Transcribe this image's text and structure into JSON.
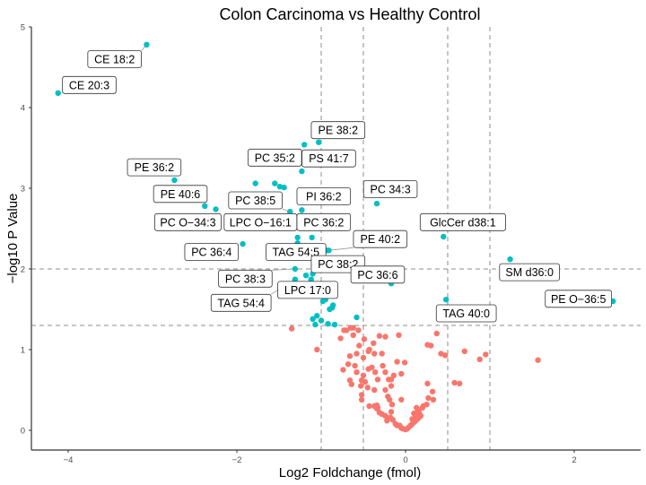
{
  "chart_data": {
    "type": "scatter",
    "title": "Colon Carcinoma vs Healthy Control",
    "xlabel": "Log2 Foldchange (fmol)",
    "ylabel": "−log10 P Value",
    "xlim": [
      -4.4,
      2.8
    ],
    "ylim": [
      -0.25,
      5.05
    ],
    "x_ticks": [
      -4,
      -2,
      0,
      2
    ],
    "y_ticks": [
      0,
      1,
      2,
      3,
      4,
      5
    ],
    "x_tick_labels": [
      "−4",
      "−2",
      "0",
      "2"
    ],
    "y_tick_labels": [
      "0",
      "1",
      "2",
      "3",
      "4",
      "5"
    ],
    "grid": false,
    "vlines": [
      -1,
      -0.5,
      0.5,
      1
    ],
    "hlines": [
      2,
      1.3
    ],
    "colors": {
      "significant": "#00BFC4",
      "not_significant": "#F8766D"
    },
    "labeled_points": [
      {
        "label": "CE 18:2",
        "x": -3.07,
        "y": 4.78,
        "lx": -3.45,
        "ly": 4.6
      },
      {
        "label": "CE 20:3",
        "x": -4.12,
        "y": 4.18,
        "lx": -3.75,
        "ly": 4.28
      },
      {
        "label": "PE 38:2",
        "x": -1.03,
        "y": 3.57,
        "lx": -0.8,
        "ly": 3.72
      },
      {
        "label": "PC 35:2",
        "x": -1.2,
        "y": 3.54,
        "lx": -1.55,
        "ly": 3.38
      },
      {
        "label": "PS 41:7",
        "x": -1.23,
        "y": 3.21,
        "lx": -0.91,
        "ly": 3.37
      },
      {
        "label": "PE 36:2",
        "x": -2.74,
        "y": 3.1,
        "lx": -2.98,
        "ly": 3.26
      },
      {
        "label": "PE 40:6",
        "x": -2.38,
        "y": 2.78,
        "lx": -2.67,
        "ly": 2.93
      },
      {
        "label": "PC 38:5",
        "x": -1.37,
        "y": 2.71,
        "lx": -1.78,
        "ly": 2.85
      },
      {
        "label": "PI 36:2",
        "x": -1.23,
        "y": 2.73,
        "lx": -0.97,
        "ly": 2.9
      },
      {
        "label": "PC 34:3",
        "x": -0.34,
        "y": 2.81,
        "lx": -0.18,
        "ly": 2.99
      },
      {
        "label": "PC O−34:3",
        "x": -2.25,
        "y": 2.74,
        "lx": -2.58,
        "ly": 2.58
      },
      {
        "label": "LPC O−16:1",
        "x": -1.28,
        "y": 2.39,
        "lx": -1.72,
        "ly": 2.58
      },
      {
        "label": "PC 36:2",
        "x": -1.11,
        "y": 2.39,
        "lx": -0.97,
        "ly": 2.58
      },
      {
        "label": "GlcCer d38:1",
        "x": 0.45,
        "y": 2.4,
        "lx": 0.68,
        "ly": 2.58
      },
      {
        "label": "PC 36:4",
        "x": -1.93,
        "y": 2.31,
        "lx": -2.3,
        "ly": 2.21
      },
      {
        "label": "TAG 54:5",
        "x": -1.28,
        "y": 2.32,
        "lx": -1.3,
        "ly": 2.21
      },
      {
        "label": "PE 40:2",
        "x": -0.91,
        "y": 2.23,
        "lx": -0.3,
        "ly": 2.37
      },
      {
        "label": "PC 38:2",
        "x": -0.94,
        "y": 2.23,
        "lx": -0.8,
        "ly": 2.06
      },
      {
        "label": "PC 36:6",
        "x": -0.17,
        "y": 1.82,
        "lx": -0.33,
        "ly": 1.93
      },
      {
        "label": "SM d36:0",
        "x": 1.24,
        "y": 2.12,
        "lx": 1.47,
        "ly": 1.96
      },
      {
        "label": "PC 38:3",
        "x": -1.31,
        "y": 2.0,
        "lx": -1.9,
        "ly": 1.88
      },
      {
        "label": "LPC 17:0",
        "x": -1.12,
        "y": 1.87,
        "lx": -1.16,
        "ly": 1.74
      },
      {
        "label": "TAG 54:4",
        "x": -1.31,
        "y": 1.87,
        "lx": -1.95,
        "ly": 1.58
      },
      {
        "label": "PE O−36:5",
        "x": 2.46,
        "y": 1.6,
        "lx": 2.05,
        "ly": 1.63
      },
      {
        "label": "TAG 40:0",
        "x": 0.48,
        "y": 1.62,
        "lx": 0.72,
        "ly": 1.45
      }
    ],
    "significant_points": [
      [
        -1.78,
        3.06
      ],
      [
        -1.55,
        3.06
      ],
      [
        -1.49,
        3.02
      ],
      [
        -1.44,
        3.01
      ],
      [
        -1.23,
        2.96
      ],
      [
        -1.18,
        1.92
      ],
      [
        -1.1,
        1.94
      ],
      [
        -0.98,
        1.6
      ],
      [
        -0.95,
        1.62
      ],
      [
        -0.9,
        1.5
      ],
      [
        -0.87,
        1.52
      ],
      [
        -0.86,
        1.55
      ],
      [
        -1.1,
        1.38
      ],
      [
        -1.05,
        1.42
      ],
      [
        -1.07,
        1.31
      ],
      [
        -1.0,
        1.36
      ],
      [
        -0.92,
        1.32
      ],
      [
        -0.84,
        1.31
      ],
      [
        -0.58,
        1.4
      ]
    ],
    "nonsignificant_points": [
      [
        -1.35,
        1.26
      ],
      [
        -1.05,
        1.0
      ],
      [
        -0.73,
        1.24
      ],
      [
        -0.7,
        1.24
      ],
      [
        -0.62,
        1.18
      ],
      [
        -0.55,
        1.05
      ],
      [
        -0.56,
        1.24
      ],
      [
        -0.49,
        1.13
      ],
      [
        -0.31,
        1.17
      ],
      [
        -0.24,
        1.16
      ],
      [
        -0.08,
        1.18
      ],
      [
        -0.38,
        1.08
      ],
      [
        -0.43,
        1.0
      ],
      [
        -0.5,
        0.9
      ],
      [
        -0.37,
        0.95
      ],
      [
        -0.74,
        0.75
      ],
      [
        -0.66,
        0.92
      ],
      [
        -0.68,
        0.82
      ],
      [
        -0.6,
        0.8
      ],
      [
        -0.58,
        0.72
      ],
      [
        -0.5,
        0.68
      ],
      [
        -0.44,
        0.98
      ],
      [
        -0.44,
        0.76
      ],
      [
        -0.36,
        0.72
      ],
      [
        -0.27,
        0.8
      ],
      [
        -0.24,
        0.72
      ],
      [
        -0.52,
        0.62
      ],
      [
        -0.53,
        0.55
      ],
      [
        -0.48,
        0.6
      ],
      [
        -0.52,
        0.44
      ],
      [
        -0.45,
        0.53
      ],
      [
        -0.37,
        0.5
      ],
      [
        -0.33,
        0.63
      ],
      [
        -0.17,
        0.63
      ],
      [
        -0.2,
        0.63
      ],
      [
        -0.17,
        0.55
      ],
      [
        -0.24,
        0.5
      ],
      [
        -0.43,
        0.3
      ],
      [
        -0.52,
        0.38
      ],
      [
        -0.37,
        0.3
      ],
      [
        -0.33,
        0.28
      ],
      [
        -0.21,
        0.42
      ],
      [
        -0.19,
        0.38
      ],
      [
        -0.16,
        0.32
      ],
      [
        -0.05,
        0.38
      ],
      [
        -0.17,
        0.23
      ],
      [
        -0.18,
        0.16
      ],
      [
        -0.24,
        0.18
      ],
      [
        -0.28,
        0.2
      ],
      [
        -0.31,
        0.22
      ],
      [
        -0.34,
        0.31
      ],
      [
        -0.34,
        0.27
      ],
      [
        -0.22,
        0.12
      ],
      [
        -0.15,
        0.13
      ],
      [
        -0.12,
        0.08
      ],
      [
        -0.1,
        0.06
      ],
      [
        -0.07,
        0.06
      ],
      [
        -0.05,
        0.03
      ],
      [
        -0.03,
        0.02
      ],
      [
        0.0,
        0.01
      ],
      [
        0.02,
        0.02
      ],
      [
        0.04,
        0.04
      ],
      [
        0.06,
        0.06
      ],
      [
        0.08,
        0.08
      ],
      [
        0.1,
        0.1
      ],
      [
        0.12,
        0.12
      ],
      [
        0.14,
        0.14
      ],
      [
        0.16,
        0.16
      ],
      [
        0.18,
        0.18
      ],
      [
        0.08,
        0.14
      ],
      [
        0.12,
        0.18
      ],
      [
        0.16,
        0.22
      ],
      [
        0.21,
        0.3
      ],
      [
        0.25,
        0.32
      ],
      [
        0.27,
        0.4
      ],
      [
        0.33,
        0.38
      ],
      [
        0.32,
        0.48
      ],
      [
        0.26,
        0.58
      ],
      [
        0.15,
        0.24
      ],
      [
        0.1,
        0.21
      ],
      [
        0.13,
        0.28
      ],
      [
        0.2,
        0.28
      ],
      [
        0.26,
        1.06
      ],
      [
        0.3,
        1.05
      ],
      [
        0.37,
        1.2
      ],
      [
        0.42,
        0.95
      ],
      [
        0.47,
        0.93
      ],
      [
        0.58,
        0.59
      ],
      [
        0.64,
        0.58
      ],
      [
        0.7,
        0.98
      ],
      [
        0.95,
        0.94
      ],
      [
        0.88,
        0.88
      ],
      [
        1.57,
        0.87
      ],
      [
        -0.1,
        0.85
      ],
      [
        -0.14,
        0.68
      ],
      [
        -0.01,
        0.84
      ],
      [
        -0.05,
        0.7
      ],
      [
        -0.62,
        1.27
      ],
      [
        -0.65,
        1.27
      ],
      [
        -0.77,
        1.14
      ],
      [
        -0.58,
        0.95
      ],
      [
        -0.4,
        0.78
      ],
      [
        -0.66,
        0.62
      ],
      [
        -0.64,
        0.57
      ],
      [
        -0.28,
        0.95
      ]
    ]
  }
}
